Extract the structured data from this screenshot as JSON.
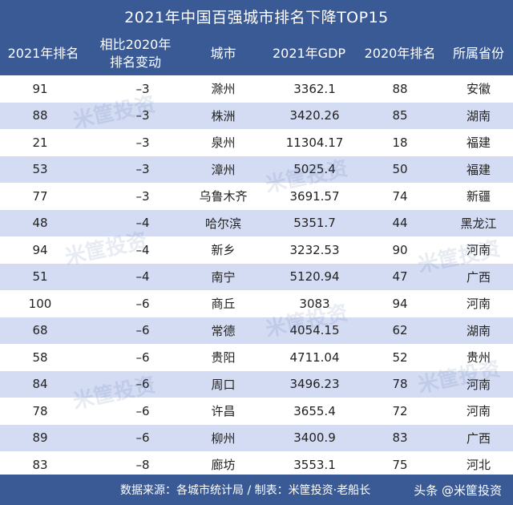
{
  "title": "2021年中国百强城市排名下降TOP15",
  "header": {
    "col1": "2021年排名",
    "col2_line1": "相比2020年",
    "col2_line2": "排名变动",
    "col3": "城市",
    "col4": "2021年GDP",
    "col5": "2020年排名",
    "col6": "所属省份"
  },
  "rows": [
    {
      "rank2021": "91",
      "change": "–3",
      "city": "滁州",
      "gdp": "3362.1",
      "rank2020": "88",
      "province": "安徽"
    },
    {
      "rank2021": "88",
      "change": "–3",
      "city": "株洲",
      "gdp": "3420.26",
      "rank2020": "85",
      "province": "湖南"
    },
    {
      "rank2021": "21",
      "change": "–3",
      "city": "泉州",
      "gdp": "11304.17",
      "rank2020": "18",
      "province": "福建"
    },
    {
      "rank2021": "53",
      "change": "–3",
      "city": "漳州",
      "gdp": "5025.4",
      "rank2020": "50",
      "province": "福建"
    },
    {
      "rank2021": "77",
      "change": "–3",
      "city": "乌鲁木齐",
      "gdp": "3691.57",
      "rank2020": "74",
      "province": "新疆"
    },
    {
      "rank2021": "48",
      "change": "–4",
      "city": "哈尔滨",
      "gdp": "5351.7",
      "rank2020": "44",
      "province": "黑龙江"
    },
    {
      "rank2021": "94",
      "change": "–4",
      "city": "新乡",
      "gdp": "3232.53",
      "rank2020": "90",
      "province": "河南"
    },
    {
      "rank2021": "51",
      "change": "–4",
      "city": "南宁",
      "gdp": "5120.94",
      "rank2020": "47",
      "province": "广西"
    },
    {
      "rank2021": "100",
      "change": "–6",
      "city": "商丘",
      "gdp": "3083",
      "rank2020": "94",
      "province": "河南"
    },
    {
      "rank2021": "68",
      "change": "–6",
      "city": "常德",
      "gdp": "4054.15",
      "rank2020": "62",
      "province": "湖南"
    },
    {
      "rank2021": "58",
      "change": "–6",
      "city": "贵阳",
      "gdp": "4711.04",
      "rank2020": "52",
      "province": "贵州"
    },
    {
      "rank2021": "84",
      "change": "–6",
      "city": "周口",
      "gdp": "3496.23",
      "rank2020": "78",
      "province": "河南"
    },
    {
      "rank2021": "78",
      "change": "–6",
      "city": "许昌",
      "gdp": "3655.4",
      "rank2020": "72",
      "province": "河南"
    },
    {
      "rank2021": "89",
      "change": "–6",
      "city": "柳州",
      "gdp": "3400.9",
      "rank2020": "83",
      "province": "广西"
    },
    {
      "rank2021": "83",
      "change": "–8",
      "city": "廊坊",
      "gdp": "3553.1",
      "rank2020": "75",
      "province": "河北"
    }
  ],
  "footer": {
    "source": "数据来源：各城市统计局 / 制表：米筐投资·老船长",
    "brand": "头条 @米筐投资"
  },
  "watermark_text": "米筐投资",
  "colors": {
    "header_bg": "#3a5a96",
    "stripe": "#d3dcf3"
  }
}
